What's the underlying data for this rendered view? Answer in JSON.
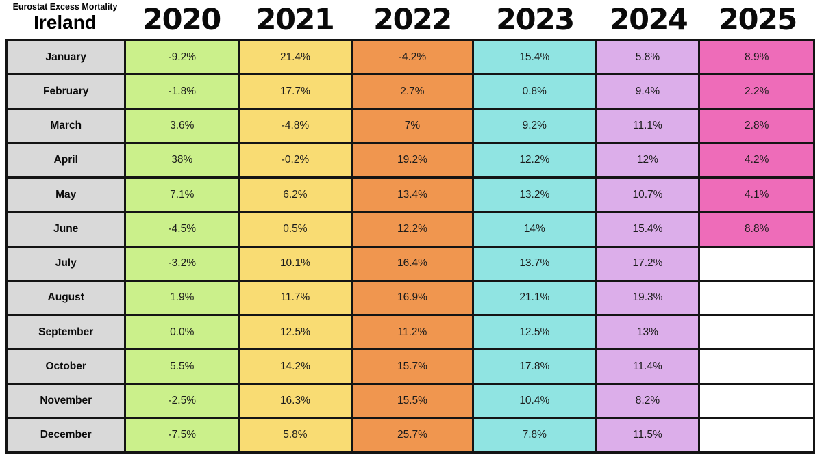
{
  "header": {
    "subtitle": "Eurostat Excess Mortality",
    "title": "Ireland"
  },
  "columns": [
    {
      "label": "2020",
      "color": "#cbf08b"
    },
    {
      "label": "2021",
      "color": "#f9dc73"
    },
    {
      "label": "2022",
      "color": "#f0964f"
    },
    {
      "label": "2023",
      "color": "#90e4e2"
    },
    {
      "label": "2024",
      "color": "#dcaeea"
    },
    {
      "label": "2025",
      "color": "#ee6cb9"
    }
  ],
  "colors": {
    "month_bg": "#d9d9d9",
    "empty_bg": "#ffffff",
    "grid": "#141414",
    "text": "#1c1c1c"
  },
  "rows": [
    {
      "month": "January",
      "cells": [
        "-9.2%",
        "21.4%",
        "-4.2%",
        "15.4%",
        "5.8%",
        "8.9%"
      ]
    },
    {
      "month": "February",
      "cells": [
        "-1.8%",
        "17.7%",
        "2.7%",
        "0.8%",
        "9.4%",
        "2.2%"
      ]
    },
    {
      "month": "March",
      "cells": [
        "3.6%",
        "-4.8%",
        "7%",
        "9.2%",
        "11.1%",
        "2.8%"
      ]
    },
    {
      "month": "April",
      "cells": [
        "38%",
        "-0.2%",
        "19.2%",
        "12.2%",
        "12%",
        "4.2%"
      ]
    },
    {
      "month": "May",
      "cells": [
        "7.1%",
        "6.2%",
        "13.4%",
        "13.2%",
        "10.7%",
        "4.1%"
      ]
    },
    {
      "month": "June",
      "cells": [
        "-4.5%",
        "0.5%",
        "12.2%",
        "14%",
        "15.4%",
        "8.8%"
      ]
    },
    {
      "month": "July",
      "cells": [
        "-3.2%",
        "10.1%",
        "16.4%",
        "13.7%",
        "17.2%",
        ""
      ]
    },
    {
      "month": "August",
      "cells": [
        "1.9%",
        "11.7%",
        "16.9%",
        "21.1%",
        "19.3%",
        ""
      ]
    },
    {
      "month": "September",
      "cells": [
        "0.0%",
        "12.5%",
        "11.2%",
        "12.5%",
        "13%",
        ""
      ]
    },
    {
      "month": "October",
      "cells": [
        "5.5%",
        "14.2%",
        "15.7%",
        "17.8%",
        "11.4%",
        ""
      ]
    },
    {
      "month": "November",
      "cells": [
        "-2.5%",
        "16.3%",
        "15.5%",
        "10.4%",
        "8.2%",
        ""
      ]
    },
    {
      "month": "December",
      "cells": [
        "-7.5%",
        "5.8%",
        "25.7%",
        "7.8%",
        "11.5%",
        ""
      ]
    }
  ],
  "chart_data": {
    "type": "table",
    "title": "Eurostat Excess Mortality",
    "region": "Ireland",
    "unit": "percent",
    "categories": [
      "January",
      "February",
      "March",
      "April",
      "May",
      "June",
      "July",
      "August",
      "September",
      "October",
      "November",
      "December"
    ],
    "series": [
      {
        "name": "2020",
        "values": [
          -9.2,
          -1.8,
          3.6,
          38,
          7.1,
          -4.5,
          -3.2,
          1.9,
          0.0,
          5.5,
          -2.5,
          -7.5
        ]
      },
      {
        "name": "2021",
        "values": [
          21.4,
          17.7,
          -4.8,
          -0.2,
          6.2,
          0.5,
          10.1,
          11.7,
          12.5,
          14.2,
          16.3,
          5.8
        ]
      },
      {
        "name": "2022",
        "values": [
          -4.2,
          2.7,
          7,
          19.2,
          13.4,
          12.2,
          16.4,
          16.9,
          11.2,
          15.7,
          15.5,
          25.7
        ]
      },
      {
        "name": "2023",
        "values": [
          15.4,
          0.8,
          9.2,
          12.2,
          13.2,
          14,
          13.7,
          21.1,
          12.5,
          17.8,
          10.4,
          7.8
        ]
      },
      {
        "name": "2024",
        "values": [
          5.8,
          9.4,
          11.1,
          12,
          10.7,
          15.4,
          17.2,
          19.3,
          13,
          11.4,
          8.2,
          11.5
        ]
      },
      {
        "name": "2025",
        "values": [
          8.9,
          2.2,
          2.8,
          4.2,
          4.1,
          8.8,
          null,
          null,
          null,
          null,
          null,
          null
        ]
      }
    ],
    "legend_position": "top",
    "grid": true
  }
}
